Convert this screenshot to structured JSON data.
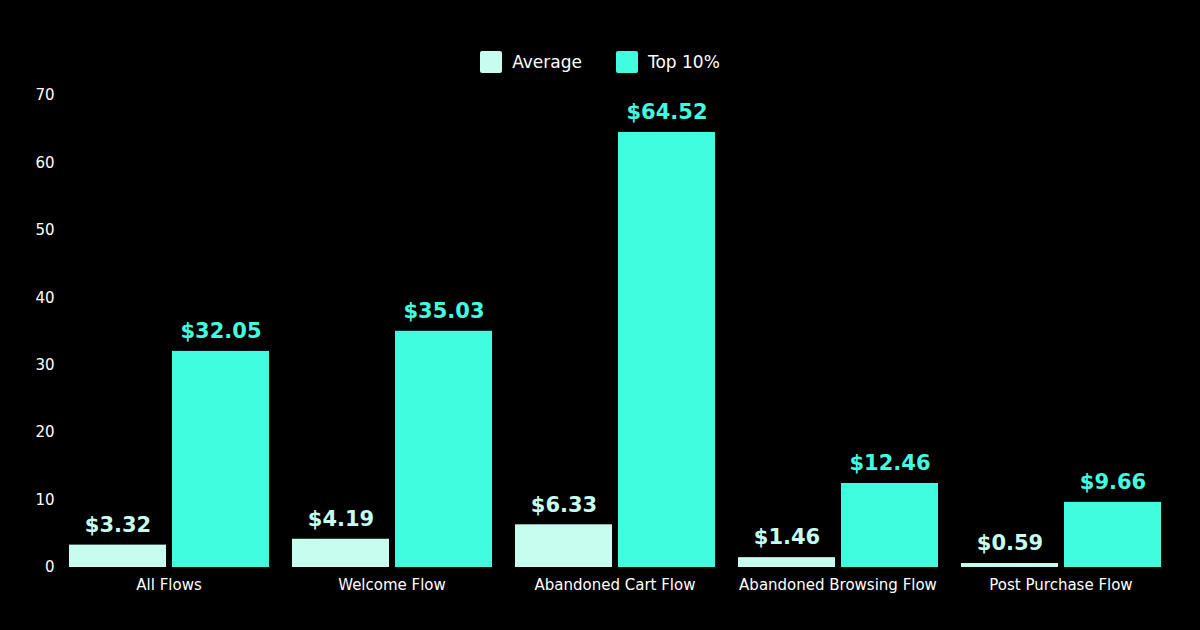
{
  "chart_data": {
    "type": "bar",
    "categories": [
      "All Flows",
      "Welcome Flow",
      "Abandoned Cart Flow",
      "Abandoned Browsing Flow",
      "Post Purchase Flow"
    ],
    "series": [
      {
        "name": "Average",
        "color": "#c6fdee",
        "values": [
          3.32,
          4.19,
          6.33,
          1.46,
          0.59
        ],
        "value_labels": [
          "$3.32",
          "$4.19",
          "$6.33",
          "$1.46",
          "$0.59"
        ]
      },
      {
        "name": "Top 10%",
        "color": "#40fde0",
        "values": [
          32.05,
          35.03,
          64.52,
          12.46,
          9.66
        ],
        "value_labels": [
          "$32.05",
          "$35.03",
          "$64.52",
          "$12.46",
          "$9.66"
        ]
      }
    ],
    "ylim": [
      0,
      70
    ],
    "yticks": [
      0,
      10,
      20,
      30,
      40,
      50,
      60,
      70
    ],
    "grid": false,
    "legend": "top",
    "data_labels": true
  }
}
